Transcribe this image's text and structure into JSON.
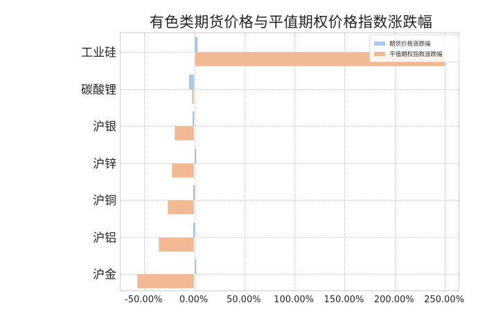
{
  "chart_data": {
    "type": "bar",
    "orientation": "horizontal",
    "title": "有色类期货价格与平值期权价格指数涨跌幅",
    "xlabel": "",
    "ylabel": "",
    "categories": [
      "工业硅",
      "碳酸锂",
      "沪银",
      "沪锌",
      "沪铜",
      "沪铝",
      "沪金"
    ],
    "series": [
      {
        "name": "期货价格涨跌幅",
        "color": "#a8c8ef",
        "values": [
          3.0,
          -5.0,
          -2.0,
          0.1,
          -1.0,
          -1.0,
          0.1
        ]
      },
      {
        "name": "平值期权指数涨跌幅",
        "color": "#f1b994",
        "values": [
          251.0,
          -2.5,
          -19.7,
          -22.5,
          -26.6,
          -35.3,
          -57.0
        ]
      }
    ],
    "xlim": [
      -74,
      265
    ],
    "xticks": [
      -50,
      0,
      50,
      100,
      150,
      200,
      250
    ],
    "xtick_labels": [
      "-50.00%",
      "0.00%",
      "50.00%",
      "100.00%",
      "150.00%",
      "200.00%",
      "250.00%"
    ],
    "grid": true,
    "legend_position": "upper right"
  },
  "title": "有色类期货价格与平值期权价格指数涨跌幅",
  "legend": {
    "items": [
      {
        "label": "期货价格涨跌幅",
        "color": "#a8c8ef"
      },
      {
        "label": "平值期权指数涨跌幅",
        "color": "#f1b994"
      }
    ]
  },
  "y_labels": [
    "工业硅",
    "碳酸锂",
    "沪银",
    "沪锌",
    "沪铜",
    "沪铝",
    "沪金"
  ],
  "x_labels": [
    "-50.00%",
    "0.00%",
    "50.00%",
    "100.00%",
    "150.00%",
    "200.00%",
    "250.00%"
  ]
}
